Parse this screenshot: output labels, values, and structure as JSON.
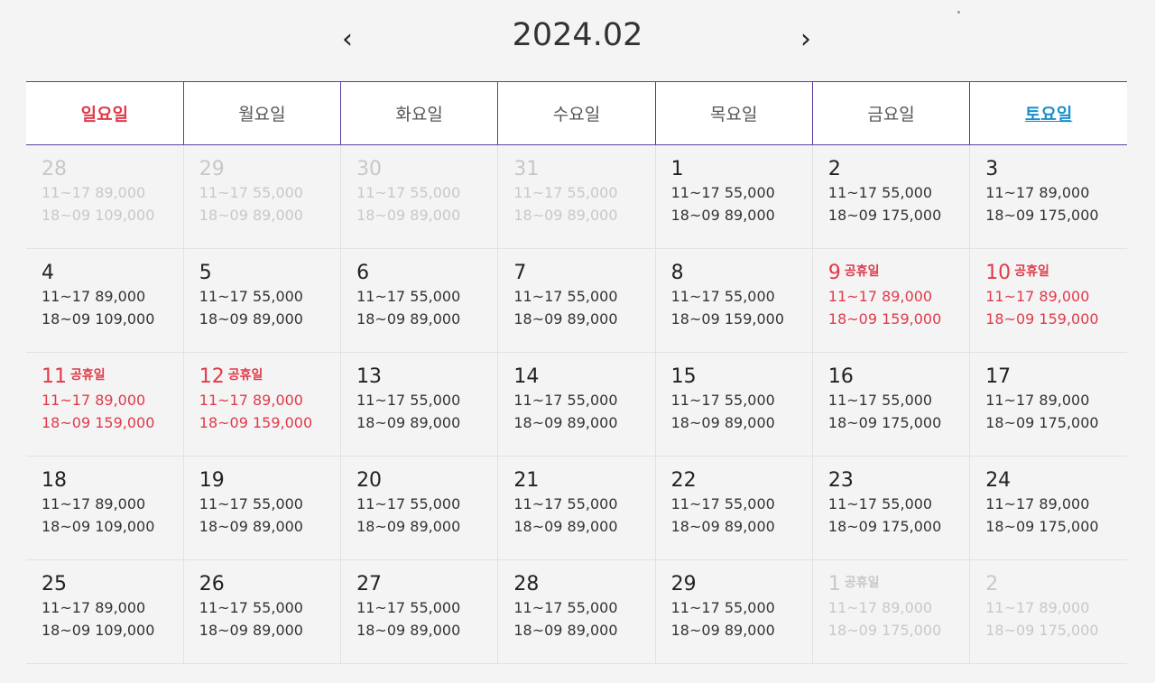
{
  "header": {
    "prev": "‹",
    "title": "2024.02",
    "next": "›"
  },
  "weekdays": [
    "일요일",
    "월요일",
    "화요일",
    "수요일",
    "목요일",
    "금요일",
    "토요일"
  ],
  "weeks": [
    [
      {
        "day": "28",
        "holiday_label": "",
        "p1": "11~17 89,000",
        "p2": "18~09 109,000",
        "state": "other"
      },
      {
        "day": "29",
        "holiday_label": "",
        "p1": "11~17 55,000",
        "p2": "18~09 89,000",
        "state": "other"
      },
      {
        "day": "30",
        "holiday_label": "",
        "p1": "11~17 55,000",
        "p2": "18~09 89,000",
        "state": "other"
      },
      {
        "day": "31",
        "holiday_label": "",
        "p1": "11~17 55,000",
        "p2": "18~09 89,000",
        "state": "other"
      },
      {
        "day": "1",
        "holiday_label": "",
        "p1": "11~17 55,000",
        "p2": "18~09 89,000",
        "state": "normal"
      },
      {
        "day": "2",
        "holiday_label": "",
        "p1": "11~17 55,000",
        "p2": "18~09 175,000",
        "state": "normal"
      },
      {
        "day": "3",
        "holiday_label": "",
        "p1": "11~17 89,000",
        "p2": "18~09 175,000",
        "state": "normal"
      }
    ],
    [
      {
        "day": "4",
        "holiday_label": "",
        "p1": "11~17 89,000",
        "p2": "18~09 109,000",
        "state": "normal"
      },
      {
        "day": "5",
        "holiday_label": "",
        "p1": "11~17 55,000",
        "p2": "18~09 89,000",
        "state": "normal"
      },
      {
        "day": "6",
        "holiday_label": "",
        "p1": "11~17 55,000",
        "p2": "18~09 89,000",
        "state": "normal"
      },
      {
        "day": "7",
        "holiday_label": "",
        "p1": "11~17 55,000",
        "p2": "18~09 89,000",
        "state": "normal"
      },
      {
        "day": "8",
        "holiday_label": "",
        "p1": "11~17 55,000",
        "p2": "18~09 159,000",
        "state": "normal"
      },
      {
        "day": "9",
        "holiday_label": "공휴일",
        "p1": "11~17 89,000",
        "p2": "18~09 159,000",
        "state": "holiday"
      },
      {
        "day": "10",
        "holiday_label": "공휴일",
        "p1": "11~17 89,000",
        "p2": "18~09 159,000",
        "state": "holiday"
      }
    ],
    [
      {
        "day": "11",
        "holiday_label": "공휴일",
        "p1": "11~17 89,000",
        "p2": "18~09 159,000",
        "state": "holiday"
      },
      {
        "day": "12",
        "holiday_label": "공휴일",
        "p1": "11~17 89,000",
        "p2": "18~09 159,000",
        "state": "holiday"
      },
      {
        "day": "13",
        "holiday_label": "",
        "p1": "11~17 55,000",
        "p2": "18~09 89,000",
        "state": "normal"
      },
      {
        "day": "14",
        "holiday_label": "",
        "p1": "11~17 55,000",
        "p2": "18~09 89,000",
        "state": "normal"
      },
      {
        "day": "15",
        "holiday_label": "",
        "p1": "11~17 55,000",
        "p2": "18~09 89,000",
        "state": "normal"
      },
      {
        "day": "16",
        "holiday_label": "",
        "p1": "11~17 55,000",
        "p2": "18~09 175,000",
        "state": "normal"
      },
      {
        "day": "17",
        "holiday_label": "",
        "p1": "11~17 89,000",
        "p2": "18~09 175,000",
        "state": "normal"
      }
    ],
    [
      {
        "day": "18",
        "holiday_label": "",
        "p1": "11~17 89,000",
        "p2": "18~09 109,000",
        "state": "normal"
      },
      {
        "day": "19",
        "holiday_label": "",
        "p1": "11~17 55,000",
        "p2": "18~09 89,000",
        "state": "normal"
      },
      {
        "day": "20",
        "holiday_label": "",
        "p1": "11~17 55,000",
        "p2": "18~09 89,000",
        "state": "normal"
      },
      {
        "day": "21",
        "holiday_label": "",
        "p1": "11~17 55,000",
        "p2": "18~09 89,000",
        "state": "normal"
      },
      {
        "day": "22",
        "holiday_label": "",
        "p1": "11~17 55,000",
        "p2": "18~09 89,000",
        "state": "normal"
      },
      {
        "day": "23",
        "holiday_label": "",
        "p1": "11~17 55,000",
        "p2": "18~09 175,000",
        "state": "normal"
      },
      {
        "day": "24",
        "holiday_label": "",
        "p1": "11~17 89,000",
        "p2": "18~09 175,000",
        "state": "normal"
      }
    ],
    [
      {
        "day": "25",
        "holiday_label": "",
        "p1": "11~17 89,000",
        "p2": "18~09 109,000",
        "state": "normal"
      },
      {
        "day": "26",
        "holiday_label": "",
        "p1": "11~17 55,000",
        "p2": "18~09 89,000",
        "state": "normal"
      },
      {
        "day": "27",
        "holiday_label": "",
        "p1": "11~17 55,000",
        "p2": "18~09 89,000",
        "state": "normal"
      },
      {
        "day": "28",
        "holiday_label": "",
        "p1": "11~17 55,000",
        "p2": "18~09 89,000",
        "state": "normal"
      },
      {
        "day": "29",
        "holiday_label": "",
        "p1": "11~17 55,000",
        "p2": "18~09 89,000",
        "state": "normal"
      },
      {
        "day": "1",
        "holiday_label": "공휴일",
        "p1": "11~17 89,000",
        "p2": "18~09 175,000",
        "state": "other"
      },
      {
        "day": "2",
        "holiday_label": "",
        "p1": "11~17 89,000",
        "p2": "18~09 175,000",
        "state": "other"
      }
    ]
  ],
  "colors": {
    "holiday": "#e03a4a",
    "saturday": "#1a8fcf",
    "header_border": "#5a3fa0",
    "other_month": "#c8c8c8"
  }
}
